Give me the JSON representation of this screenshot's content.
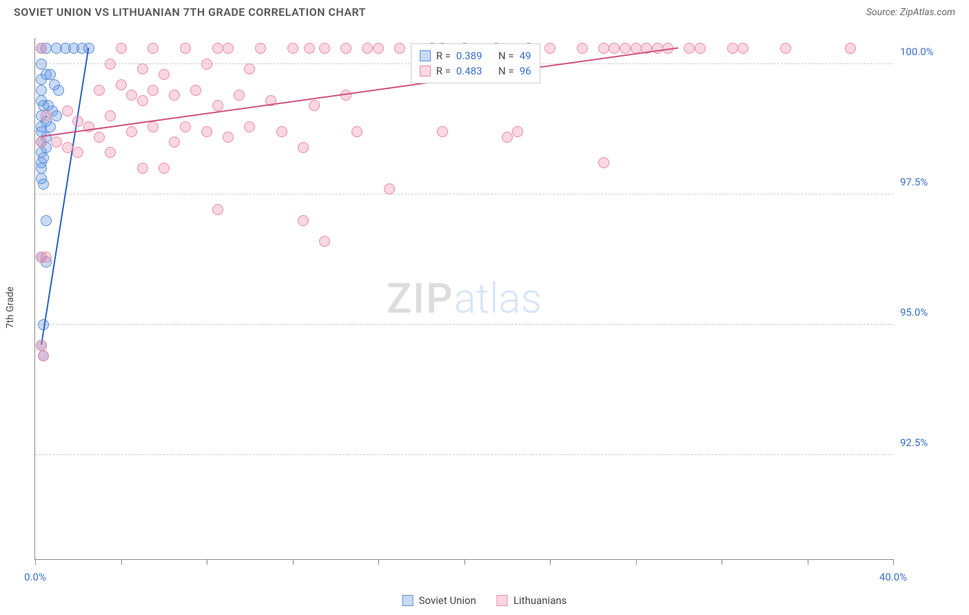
{
  "title": "SOVIET UNION VS LITHUANIAN 7TH GRADE CORRELATION CHART",
  "source": "Source: ZipAtlas.com",
  "ylabel": "7th Grade",
  "watermark_bold": "ZIP",
  "watermark_light": "atlas",
  "chart": {
    "type": "scatter",
    "xlim": [
      0,
      40
    ],
    "ylim": [
      90.5,
      100.5
    ],
    "background_color": "#ffffff",
    "grid_color": "#cccccc",
    "marker_size": 16,
    "xticks": [
      0,
      4,
      8,
      12,
      16,
      20,
      24,
      28,
      32,
      36,
      40
    ],
    "xtick_labels": {
      "0": "0.0%",
      "40": "40.0%"
    },
    "yticks": [
      92.5,
      95.0,
      97.5,
      100.0
    ],
    "ytick_labels": [
      "92.5%",
      "95.0%",
      "97.5%",
      "100.0%"
    ],
    "series": [
      {
        "name": "Soviet Union",
        "color_fill": "rgba(100,150,230,0.35)",
        "color_stroke": "#5a8fd6",
        "trend_color": "#2a5fc0",
        "trend": {
          "x1": 0.3,
          "y1": 94.6,
          "x2": 2.5,
          "y2": 100.3
        },
        "stats": {
          "R": "0.389",
          "N": "49"
        },
        "points": [
          [
            0.3,
            100.3
          ],
          [
            0.5,
            100.3
          ],
          [
            1.0,
            100.3
          ],
          [
            1.4,
            100.3
          ],
          [
            1.8,
            100.3
          ],
          [
            2.2,
            100.3
          ],
          [
            2.5,
            100.3
          ],
          [
            0.3,
            100.0
          ],
          [
            0.3,
            99.7
          ],
          [
            0.3,
            99.5
          ],
          [
            0.5,
            99.8
          ],
          [
            0.7,
            99.8
          ],
          [
            0.9,
            99.6
          ],
          [
            1.1,
            99.5
          ],
          [
            0.3,
            99.3
          ],
          [
            0.4,
            99.2
          ],
          [
            0.6,
            99.2
          ],
          [
            0.8,
            99.1
          ],
          [
            1.0,
            99.0
          ],
          [
            0.3,
            99.0
          ],
          [
            0.3,
            98.8
          ],
          [
            0.5,
            98.9
          ],
          [
            0.7,
            98.8
          ],
          [
            0.3,
            98.7
          ],
          [
            0.5,
            98.6
          ],
          [
            0.3,
            98.5
          ],
          [
            0.5,
            98.4
          ],
          [
            0.3,
            98.3
          ],
          [
            0.4,
            98.2
          ],
          [
            0.3,
            98.1
          ],
          [
            0.3,
            98.0
          ],
          [
            0.3,
            97.8
          ],
          [
            0.4,
            97.7
          ],
          [
            0.5,
            97.0
          ],
          [
            0.3,
            96.3
          ],
          [
            0.5,
            96.2
          ],
          [
            0.4,
            95.0
          ],
          [
            0.3,
            94.6
          ],
          [
            0.4,
            94.4
          ]
        ]
      },
      {
        "name": "Lithuanians",
        "color_fill": "rgba(240,140,170,0.35)",
        "color_stroke": "#e88aa8",
        "trend_color": "#d05080",
        "trend": {
          "x1": 0.3,
          "y1": 98.6,
          "x2": 30.0,
          "y2": 100.3
        },
        "stats": {
          "R": "0.483",
          "N": "96"
        },
        "points": [
          [
            0.3,
            100.3
          ],
          [
            4.0,
            100.3
          ],
          [
            5.5,
            100.3
          ],
          [
            7.0,
            100.3
          ],
          [
            8.5,
            100.3
          ],
          [
            9.0,
            100.3
          ],
          [
            10.5,
            100.3
          ],
          [
            12.0,
            100.3
          ],
          [
            12.8,
            100.3
          ],
          [
            13.5,
            100.3
          ],
          [
            14.5,
            100.3
          ],
          [
            15.5,
            100.3
          ],
          [
            16.0,
            100.3
          ],
          [
            17.0,
            100.3
          ],
          [
            18.5,
            100.3
          ],
          [
            19.0,
            100.3
          ],
          [
            20.0,
            100.3
          ],
          [
            21.5,
            100.3
          ],
          [
            23.0,
            100.3
          ],
          [
            24.0,
            100.3
          ],
          [
            25.5,
            100.3
          ],
          [
            26.5,
            100.3
          ],
          [
            27.0,
            100.3
          ],
          [
            27.5,
            100.3
          ],
          [
            28.0,
            100.3
          ],
          [
            28.5,
            100.3
          ],
          [
            29.0,
            100.3
          ],
          [
            29.5,
            100.3
          ],
          [
            30.5,
            100.3
          ],
          [
            31.0,
            100.3
          ],
          [
            32.5,
            100.3
          ],
          [
            33.0,
            100.3
          ],
          [
            35.0,
            100.3
          ],
          [
            38.0,
            100.3
          ],
          [
            3.5,
            100.0
          ],
          [
            5.0,
            99.9
          ],
          [
            6.0,
            99.8
          ],
          [
            8.0,
            100.0
          ],
          [
            10.0,
            99.9
          ],
          [
            3.0,
            99.5
          ],
          [
            4.0,
            99.6
          ],
          [
            4.5,
            99.4
          ],
          [
            5.0,
            99.3
          ],
          [
            5.5,
            99.5
          ],
          [
            6.5,
            99.4
          ],
          [
            7.5,
            99.5
          ],
          [
            8.5,
            99.2
          ],
          [
            9.5,
            99.4
          ],
          [
            11.0,
            99.3
          ],
          [
            13.0,
            99.2
          ],
          [
            14.5,
            99.4
          ],
          [
            0.5,
            99.0
          ],
          [
            1.5,
            99.1
          ],
          [
            2.0,
            98.9
          ],
          [
            2.5,
            98.8
          ],
          [
            3.0,
            98.6
          ],
          [
            3.5,
            99.0
          ],
          [
            4.5,
            98.7
          ],
          [
            5.5,
            98.8
          ],
          [
            6.5,
            98.5
          ],
          [
            7.0,
            98.8
          ],
          [
            8.0,
            98.7
          ],
          [
            9.0,
            98.6
          ],
          [
            10.0,
            98.8
          ],
          [
            11.5,
            98.7
          ],
          [
            12.5,
            98.4
          ],
          [
            15.0,
            98.7
          ],
          [
            19.0,
            98.7
          ],
          [
            22.0,
            98.6
          ],
          [
            22.5,
            98.7
          ],
          [
            0.3,
            98.5
          ],
          [
            1.0,
            98.5
          ],
          [
            1.5,
            98.4
          ],
          [
            2.0,
            98.3
          ],
          [
            3.5,
            98.3
          ],
          [
            5.0,
            98.0
          ],
          [
            6.0,
            98.0
          ],
          [
            26.5,
            98.1
          ],
          [
            0.3,
            96.3
          ],
          [
            0.5,
            96.3
          ],
          [
            8.5,
            97.2
          ],
          [
            12.5,
            97.0
          ],
          [
            16.5,
            97.6
          ],
          [
            13.5,
            96.6
          ],
          [
            0.3,
            94.6
          ],
          [
            0.4,
            94.4
          ]
        ]
      }
    ]
  },
  "legend": {
    "series1_label": "Soviet Union",
    "series2_label": "Lithuanians"
  },
  "stats_labels": {
    "R": "R =",
    "N": "N ="
  }
}
